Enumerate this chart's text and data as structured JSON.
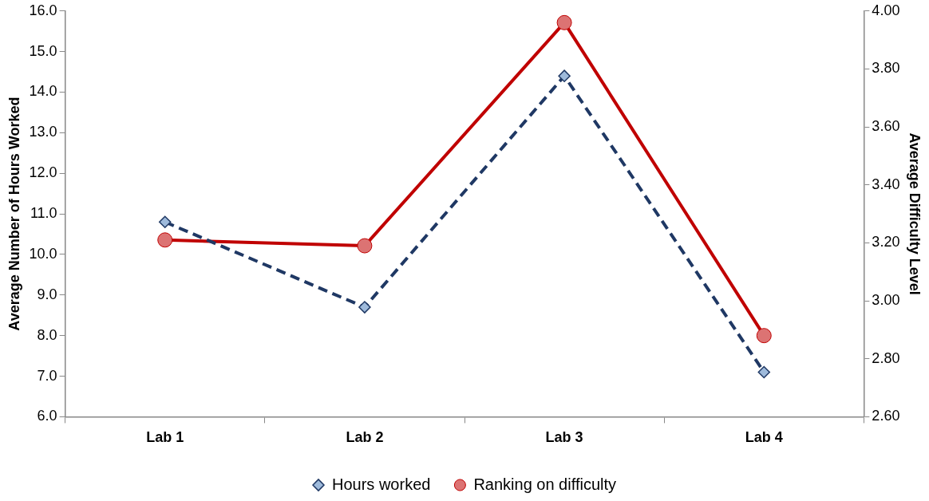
{
  "chart_data": {
    "type": "line",
    "ylabel": "Average Number of Hours Worked",
    "y2label": "Average Difficulty Level",
    "categories": [
      "Lab 1",
      "Lab 2",
      "Lab 3",
      "Lab 4"
    ],
    "series": [
      {
        "name": "Hours worked",
        "color": "#1f3864",
        "values": [
          10.8,
          8.7,
          14.4,
          7.1
        ],
        "marker": "diamond",
        "line_style": "dashed"
      },
      {
        "name": "Ranking on difficulty",
        "color": "#c00000",
        "values": [
          3.21,
          3.19,
          3.96,
          2.88
        ],
        "axis": "y2",
        "marker": "circle",
        "line_style": "solid"
      }
    ],
    "ylim": [
      6,
      16
    ],
    "yticks": [
      {
        "value": 6,
        "label": "6.0"
      },
      {
        "value": 7,
        "label": "7.0"
      },
      {
        "value": 8,
        "label": "8.0"
      },
      {
        "value": 9,
        "label": "9.0"
      },
      {
        "value": 10,
        "label": "10.0"
      },
      {
        "value": 11,
        "label": "11.0"
      },
      {
        "value": 12,
        "label": "12.0"
      },
      {
        "value": 13,
        "label": "13.0"
      },
      {
        "value": 14,
        "label": "14.0"
      },
      {
        "value": 15,
        "label": "15.0"
      },
      {
        "value": 16,
        "label": "16.0"
      }
    ],
    "y2lim": [
      2.6,
      4
    ],
    "y2ticks": [
      {
        "value": 2.6,
        "label": "2.60"
      },
      {
        "value": 2.8,
        "label": "2.80"
      },
      {
        "value": 3,
        "label": "3.00"
      },
      {
        "value": 3.2,
        "label": "3.20"
      },
      {
        "value": 3.4,
        "label": "3.40"
      },
      {
        "value": 3.6,
        "label": "3.60"
      },
      {
        "value": 3.8,
        "label": "3.80"
      },
      {
        "value": 4,
        "label": "4.00"
      }
    ],
    "grid": false,
    "legend": "bottom"
  }
}
